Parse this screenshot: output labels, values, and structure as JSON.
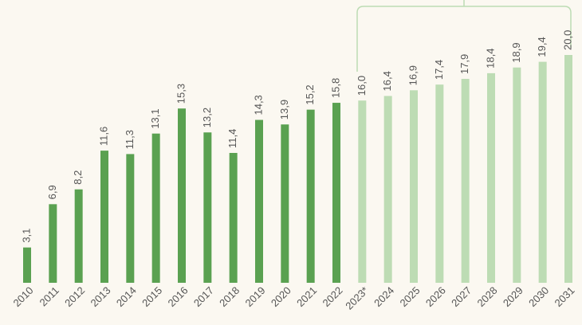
{
  "chart_data": {
    "type": "bar",
    "categories": [
      "2010",
      "2011",
      "2012",
      "2013",
      "2014",
      "2015",
      "2016",
      "2017",
      "2018",
      "2019",
      "2020",
      "2021",
      "2022",
      "2023*",
      "2024",
      "2025",
      "2026",
      "2027",
      "2028",
      "2029",
      "2030",
      "2031"
    ],
    "values": [
      3.1,
      6.9,
      8.2,
      11.6,
      11.3,
      13.1,
      15.3,
      13.2,
      11.4,
      14.3,
      13.9,
      15.2,
      15.8,
      16.0,
      16.4,
      16.9,
      17.4,
      17.9,
      18.4,
      18.9,
      19.4,
      20.0
    ],
    "value_labels": [
      "3,1",
      "6,9",
      "8,2",
      "11,6",
      "11,3",
      "13,1",
      "15,3",
      "13,2",
      "11,4",
      "14,3",
      "13,9",
      "15,2",
      "15,8",
      "16,0",
      "16,4",
      "16,9",
      "17,4",
      "17,9",
      "18,4",
      "18,9",
      "19,4",
      "20,0"
    ],
    "colors": [
      "#5aa151",
      "#5aa151",
      "#5aa151",
      "#5aa151",
      "#5aa151",
      "#5aa151",
      "#5aa151",
      "#5aa151",
      "#5aa151",
      "#5aa151",
      "#5aa151",
      "#5aa151",
      "#5aa151",
      "#bddcb4",
      "#bddcb4",
      "#bddcb4",
      "#bddcb4",
      "#bddcb4",
      "#bddcb4",
      "#bddcb4",
      "#bddcb4",
      "#bddcb4"
    ]
  }
}
